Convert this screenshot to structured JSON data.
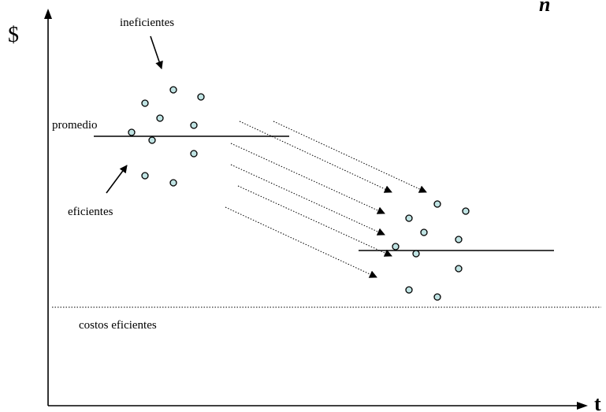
{
  "axes": {
    "y_label": "$",
    "x_label": "t",
    "corner_mark": "n"
  },
  "labels": {
    "inefficient": "ineficientes",
    "average": "promedio",
    "efficient": "eficientes",
    "efficient_costs": "costos eficientes"
  }
}
